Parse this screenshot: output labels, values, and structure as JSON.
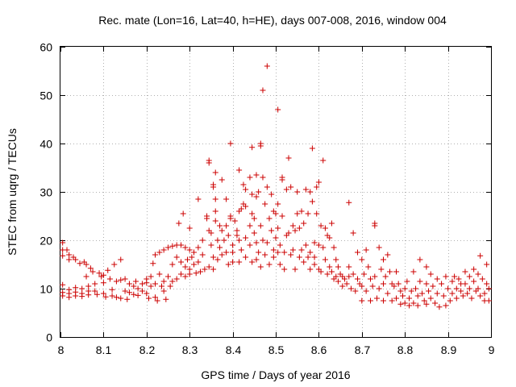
{
  "chart_data": {
    "type": "scatter",
    "title": "Rec. mate (Lon=16, Lat=40, h=HE), days 007-008, 2016, window 004",
    "xlabel": "GPS time / Days of year 2016",
    "ylabel": "STEC from uqrg / TECUs",
    "xlim": [
      8,
      9
    ],
    "ylim": [
      0,
      60
    ],
    "xticks": [
      8,
      8.1,
      8.2,
      8.3,
      8.4,
      8.5,
      8.6,
      8.7,
      8.8,
      8.9,
      9
    ],
    "xtick_labels": [
      "8",
      "8.1",
      "8.2",
      "8.3",
      "8.4",
      "8.5",
      "8.6",
      "8.7",
      "8.8",
      "8.9",
      "9"
    ],
    "yticks": [
      0,
      10,
      20,
      30,
      40,
      50,
      60
    ],
    "ytick_labels": [
      "0",
      "10",
      "20",
      "30",
      "40",
      "50",
      "60"
    ],
    "grid": true,
    "marker": "+",
    "color": "#cc0000",
    "points": [
      [
        8.005,
        19.5
      ],
      [
        8.005,
        18.0
      ],
      [
        8.005,
        16.8
      ],
      [
        8.005,
        10.8
      ],
      [
        8.005,
        9.2
      ],
      [
        8.005,
        8.5
      ],
      [
        8.015,
        18.0
      ],
      [
        8.02,
        17.0
      ],
      [
        8.02,
        16.0
      ],
      [
        8.02,
        9.8
      ],
      [
        8.02,
        9.0
      ],
      [
        8.02,
        8.2
      ],
      [
        8.03,
        16.5
      ],
      [
        8.035,
        16.0
      ],
      [
        8.035,
        10.2
      ],
      [
        8.035,
        9.3
      ],
      [
        8.035,
        8.5
      ],
      [
        8.045,
        15.2
      ],
      [
        8.05,
        10.0
      ],
      [
        8.05,
        9.0
      ],
      [
        8.05,
        8.4
      ],
      [
        8.055,
        15.5
      ],
      [
        8.06,
        15.0
      ],
      [
        8.06,
        12.5
      ],
      [
        8.065,
        10.5
      ],
      [
        8.065,
        9.5
      ],
      [
        8.065,
        8.7
      ],
      [
        8.07,
        14.2
      ],
      [
        8.075,
        13.5
      ],
      [
        8.08,
        11.0
      ],
      [
        8.08,
        9.5
      ],
      [
        8.085,
        8.8
      ],
      [
        8.09,
        13.2
      ],
      [
        8.095,
        12.5
      ],
      [
        8.1,
        12.8
      ],
      [
        8.1,
        11.2
      ],
      [
        8.1,
        9.0
      ],
      [
        8.105,
        8.3
      ],
      [
        8.11,
        13.8
      ],
      [
        8.115,
        12.0
      ],
      [
        8.12,
        9.8
      ],
      [
        8.12,
        8.5
      ],
      [
        8.125,
        15.0
      ],
      [
        8.13,
        11.5
      ],
      [
        8.13,
        8.2
      ],
      [
        8.14,
        16.0
      ],
      [
        8.14,
        11.8
      ],
      [
        8.14,
        8.0
      ],
      [
        8.15,
        12.0
      ],
      [
        8.15,
        9.5
      ],
      [
        8.155,
        7.8
      ],
      [
        8.16,
        11.0
      ],
      [
        8.16,
        9.2
      ],
      [
        8.17,
        10.5
      ],
      [
        8.17,
        8.8
      ],
      [
        8.175,
        11.5
      ],
      [
        8.18,
        10.0
      ],
      [
        8.18,
        8.6
      ],
      [
        8.19,
        11.0
      ],
      [
        8.19,
        9.5
      ],
      [
        8.2,
        12.0
      ],
      [
        8.2,
        11.2
      ],
      [
        8.2,
        9.0
      ],
      [
        8.205,
        8.0
      ],
      [
        8.21,
        12.5
      ],
      [
        8.21,
        10.5
      ],
      [
        8.215,
        15.2
      ],
      [
        8.22,
        17.0
      ],
      [
        8.22,
        11.0
      ],
      [
        8.22,
        8.2
      ],
      [
        8.225,
        7.5
      ],
      [
        8.23,
        17.5
      ],
      [
        8.23,
        13.0
      ],
      [
        8.235,
        10.5
      ],
      [
        8.24,
        18.0
      ],
      [
        8.24,
        11.5
      ],
      [
        8.24,
        9.5
      ],
      [
        8.245,
        7.8
      ],
      [
        8.25,
        18.5
      ],
      [
        8.25,
        12.5
      ],
      [
        8.255,
        10.5
      ],
      [
        8.26,
        18.8
      ],
      [
        8.26,
        15.0
      ],
      [
        8.26,
        11.5
      ],
      [
        8.27,
        19.0
      ],
      [
        8.27,
        16.5
      ],
      [
        8.27,
        12.0
      ],
      [
        8.275,
        23.5
      ],
      [
        8.28,
        19.0
      ],
      [
        8.28,
        15.5
      ],
      [
        8.28,
        13.0
      ],
      [
        8.285,
        25.5
      ],
      [
        8.29,
        18.5
      ],
      [
        8.29,
        14.5
      ],
      [
        8.29,
        12.5
      ],
      [
        8.295,
        16.0
      ],
      [
        8.3,
        22.5
      ],
      [
        8.3,
        18.0
      ],
      [
        8.3,
        14.0
      ],
      [
        8.3,
        13.0
      ],
      [
        8.305,
        16.5
      ],
      [
        8.31,
        17.5
      ],
      [
        8.31,
        15.0
      ],
      [
        8.315,
        13.2
      ],
      [
        8.32,
        28.5
      ],
      [
        8.32,
        18.5
      ],
      [
        8.32,
        15.5
      ],
      [
        8.325,
        13.5
      ],
      [
        8.33,
        20.0
      ],
      [
        8.33,
        17.0
      ],
      [
        8.335,
        14.0
      ],
      [
        8.34,
        25.0
      ],
      [
        8.34,
        24.5
      ],
      [
        8.345,
        36.5
      ],
      [
        8.345,
        36.0
      ],
      [
        8.345,
        22.0
      ],
      [
        8.345,
        14.5
      ],
      [
        8.35,
        21.5
      ],
      [
        8.35,
        19.0
      ],
      [
        8.355,
        31.5
      ],
      [
        8.355,
        31.0
      ],
      [
        8.355,
        16.5
      ],
      [
        8.355,
        14.0
      ],
      [
        8.36,
        34.0
      ],
      [
        8.36,
        28.5
      ],
      [
        8.36,
        26.0
      ],
      [
        8.36,
        24.0
      ],
      [
        8.365,
        20.0
      ],
      [
        8.365,
        16.0
      ],
      [
        8.37,
        23.0
      ],
      [
        8.37,
        18.5
      ],
      [
        8.375,
        32.5
      ],
      [
        8.375,
        22.0
      ],
      [
        8.375,
        17.0
      ],
      [
        8.38,
        20.0
      ],
      [
        8.385,
        28.5
      ],
      [
        8.385,
        23.0
      ],
      [
        8.385,
        17.5
      ],
      [
        8.39,
        21.0
      ],
      [
        8.39,
        15.0
      ],
      [
        8.395,
        40.0
      ],
      [
        8.395,
        25.0
      ],
      [
        8.395,
        24.5
      ],
      [
        8.4,
        19.0
      ],
      [
        8.4,
        17.5
      ],
      [
        8.4,
        15.5
      ],
      [
        8.405,
        24.0
      ],
      [
        8.41,
        22.0
      ],
      [
        8.41,
        21.0
      ],
      [
        8.415,
        34.5
      ],
      [
        8.415,
        26.0
      ],
      [
        8.415,
        20.0
      ],
      [
        8.415,
        15.5
      ],
      [
        8.42,
        26.5
      ],
      [
        8.42,
        18.0
      ],
      [
        8.425,
        31.5
      ],
      [
        8.425,
        27.5
      ],
      [
        8.43,
        30.5
      ],
      [
        8.43,
        27.0
      ],
      [
        8.43,
        20.5
      ],
      [
        8.43,
        16.5
      ],
      [
        8.44,
        33.0
      ],
      [
        8.44,
        23.0
      ],
      [
        8.44,
        19.0
      ],
      [
        8.445,
        39.2
      ],
      [
        8.445,
        29.5
      ],
      [
        8.445,
        25.5
      ],
      [
        8.445,
        15.5
      ],
      [
        8.45,
        24.5
      ],
      [
        8.45,
        21.5
      ],
      [
        8.455,
        33.5
      ],
      [
        8.455,
        29.0
      ],
      [
        8.455,
        19.5
      ],
      [
        8.455,
        16.0
      ],
      [
        8.46,
        30.0
      ],
      [
        8.46,
        17.5
      ],
      [
        8.465,
        40.0
      ],
      [
        8.465,
        39.5
      ],
      [
        8.465,
        23.0
      ],
      [
        8.465,
        14.5
      ],
      [
        8.47,
        51.0
      ],
      [
        8.47,
        33.0
      ],
      [
        8.47,
        20.0
      ],
      [
        8.475,
        27.5
      ],
      [
        8.475,
        17.0
      ],
      [
        8.48,
        56.0
      ],
      [
        8.48,
        31.0
      ],
      [
        8.48,
        19.5
      ],
      [
        8.485,
        24.5
      ],
      [
        8.485,
        15.0
      ],
      [
        8.49,
        29.5
      ],
      [
        8.49,
        22.0
      ],
      [
        8.495,
        26.0
      ],
      [
        8.495,
        18.0
      ],
      [
        8.495,
        16.5
      ],
      [
        8.5,
        25.5
      ],
      [
        8.5,
        20.5
      ],
      [
        8.505,
        47.0
      ],
      [
        8.505,
        27.5
      ],
      [
        8.505,
        22.5
      ],
      [
        8.505,
        17.5
      ],
      [
        8.51,
        19.0
      ],
      [
        8.51,
        15.0
      ],
      [
        8.515,
        33.0
      ],
      [
        8.515,
        32.5
      ],
      [
        8.515,
        25.0
      ],
      [
        8.52,
        17.5
      ],
      [
        8.52,
        14.0
      ],
      [
        8.525,
        30.5
      ],
      [
        8.525,
        21.0
      ],
      [
        8.53,
        37.0
      ],
      [
        8.53,
        21.5
      ],
      [
        8.535,
        31.0
      ],
      [
        8.535,
        17.0
      ],
      [
        8.54,
        23.0
      ],
      [
        8.54,
        18.0
      ],
      [
        8.545,
        22.0
      ],
      [
        8.545,
        14.0
      ],
      [
        8.55,
        30.0
      ],
      [
        8.55,
        25.5
      ],
      [
        8.555,
        22.5
      ],
      [
        8.555,
        16.5
      ],
      [
        8.56,
        26.0
      ],
      [
        8.56,
        18.0
      ],
      [
        8.565,
        23.5
      ],
      [
        8.565,
        15.5
      ],
      [
        8.57,
        30.5
      ],
      [
        8.57,
        19.0
      ],
      [
        8.575,
        25.5
      ],
      [
        8.575,
        16.5
      ],
      [
        8.58,
        30.0
      ],
      [
        8.58,
        17.5
      ],
      [
        8.58,
        14.0
      ],
      [
        8.585,
        39.0
      ],
      [
        8.585,
        28.0
      ],
      [
        8.59,
        19.5
      ],
      [
        8.59,
        16.5
      ],
      [
        8.59,
        15.0
      ],
      [
        8.595,
        31.0
      ],
      [
        8.595,
        25.5
      ],
      [
        8.6,
        32.0
      ],
      [
        8.6,
        19.0
      ],
      [
        8.6,
        14.0
      ],
      [
        8.605,
        23.0
      ],
      [
        8.605,
        13.5
      ],
      [
        8.61,
        36.5
      ],
      [
        8.61,
        18.5
      ],
      [
        8.615,
        22.5
      ],
      [
        8.615,
        16.0
      ],
      [
        8.62,
        21.0
      ],
      [
        8.62,
        13.0
      ],
      [
        8.625,
        20.5
      ],
      [
        8.625,
        14.5
      ],
      [
        8.63,
        23.5
      ],
      [
        8.63,
        13.5
      ],
      [
        8.635,
        18.5
      ],
      [
        8.635,
        12.0
      ],
      [
        8.64,
        16.0
      ],
      [
        8.64,
        12.5
      ],
      [
        8.645,
        14.5
      ],
      [
        8.645,
        11.5
      ],
      [
        8.65,
        13.0
      ],
      [
        8.655,
        12.5
      ],
      [
        8.655,
        10.5
      ],
      [
        8.66,
        12.0
      ],
      [
        8.665,
        11.0
      ],
      [
        8.67,
        27.8
      ],
      [
        8.67,
        14.5
      ],
      [
        8.67,
        12.5
      ],
      [
        8.675,
        10.0
      ],
      [
        8.68,
        21.5
      ],
      [
        8.68,
        13.0
      ],
      [
        8.685,
        9.5
      ],
      [
        8.69,
        17.5
      ],
      [
        8.69,
        12.0
      ],
      [
        8.695,
        11.0
      ],
      [
        8.7,
        16.0
      ],
      [
        8.7,
        10.5
      ],
      [
        8.7,
        7.5
      ],
      [
        8.705,
        13.0
      ],
      [
        8.71,
        18.0
      ],
      [
        8.71,
        9.5
      ],
      [
        8.715,
        14.5
      ],
      [
        8.72,
        12.0
      ],
      [
        8.72,
        7.5
      ],
      [
        8.725,
        10.5
      ],
      [
        8.73,
        23.5
      ],
      [
        8.73,
        23.0
      ],
      [
        8.73,
        12.5
      ],
      [
        8.735,
        8.0
      ],
      [
        8.74,
        18.5
      ],
      [
        8.74,
        10.0
      ],
      [
        8.745,
        14.0
      ],
      [
        8.75,
        16.0
      ],
      [
        8.75,
        11.0
      ],
      [
        8.75,
        7.5
      ],
      [
        8.755,
        12.5
      ],
      [
        8.76,
        17.0
      ],
      [
        8.76,
        9.0
      ],
      [
        8.765,
        13.5
      ],
      [
        8.77,
        11.0
      ],
      [
        8.77,
        7.5
      ],
      [
        8.775,
        10.5
      ],
      [
        8.78,
        13.5
      ],
      [
        8.78,
        8.0
      ],
      [
        8.785,
        11.0
      ],
      [
        8.79,
        9.5
      ],
      [
        8.79,
        6.8
      ],
      [
        8.795,
        8.5
      ],
      [
        8.8,
        10.0
      ],
      [
        8.8,
        7.0
      ],
      [
        8.805,
        11.5
      ],
      [
        8.81,
        8.0
      ],
      [
        8.81,
        6.5
      ],
      [
        8.815,
        9.5
      ],
      [
        8.82,
        13.5
      ],
      [
        8.82,
        7.0
      ],
      [
        8.825,
        10.0
      ],
      [
        8.83,
        8.5
      ],
      [
        8.83,
        6.5
      ],
      [
        8.835,
        16.0
      ],
      [
        8.835,
        11.5
      ],
      [
        8.84,
        9.0
      ],
      [
        8.845,
        7.5
      ],
      [
        8.85,
        14.5
      ],
      [
        8.85,
        11.0
      ],
      [
        8.85,
        6.8
      ],
      [
        8.855,
        9.5
      ],
      [
        8.86,
        13.0
      ],
      [
        8.86,
        8.0
      ],
      [
        8.865,
        10.5
      ],
      [
        8.87,
        7.0
      ],
      [
        8.875,
        12.0
      ],
      [
        8.875,
        9.0
      ],
      [
        8.88,
        6.2
      ],
      [
        8.885,
        11.0
      ],
      [
        8.89,
        8.5
      ],
      [
        8.895,
        12.5
      ],
      [
        8.895,
        6.5
      ],
      [
        8.9,
        10.0
      ],
      [
        8.905,
        7.5
      ],
      [
        8.91,
        11.5
      ],
      [
        8.91,
        9.0
      ],
      [
        8.915,
        12.5
      ],
      [
        8.92,
        10.0
      ],
      [
        8.92,
        8.0
      ],
      [
        8.925,
        12.0
      ],
      [
        8.93,
        11.0
      ],
      [
        8.93,
        9.5
      ],
      [
        8.935,
        8.5
      ],
      [
        8.94,
        13.5
      ],
      [
        8.94,
        11.0
      ],
      [
        8.945,
        9.0
      ],
      [
        8.95,
        12.5
      ],
      [
        8.95,
        10.0
      ],
      [
        8.955,
        8.0
      ],
      [
        8.96,
        14.0
      ],
      [
        8.96,
        11.5
      ],
      [
        8.965,
        9.5
      ],
      [
        8.97,
        13.0
      ],
      [
        8.97,
        10.0
      ],
      [
        8.975,
        16.8
      ],
      [
        8.975,
        8.5
      ],
      [
        8.98,
        12.0
      ],
      [
        8.985,
        9.0
      ],
      [
        8.985,
        7.5
      ],
      [
        8.99,
        15.0
      ],
      [
        8.99,
        11.0
      ],
      [
        8.995,
        10.0
      ],
      [
        8.995,
        7.5
      ]
    ]
  }
}
